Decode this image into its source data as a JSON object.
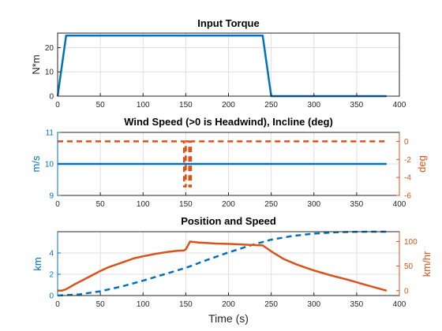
{
  "colors": {
    "blue": "#0072BD",
    "orange": "#D95319",
    "axis": "#262626",
    "grid": "#dfdfdf"
  },
  "chart_data": [
    {
      "type": "line",
      "title": "Input Torque",
      "xlabel": "",
      "ylabel": "N*m",
      "xlim": [
        0,
        400
      ],
      "ylim": [
        0,
        26
      ],
      "xticks": [
        0,
        50,
        100,
        150,
        200,
        250,
        300,
        350,
        400
      ],
      "yticks": [
        0,
        10,
        20
      ],
      "grid": true,
      "series": [
        {
          "color": "#0072BD",
          "style": "solid",
          "x": [
            0,
            10,
            240,
            250,
            385
          ],
          "y": [
            0,
            25,
            25,
            0,
            0
          ]
        }
      ]
    },
    {
      "type": "line",
      "title": "Wind Speed (>0 is Headwind), Incline (deg)",
      "xlabel": "",
      "ylabel": "m/s",
      "y2label": "deg",
      "xlim": [
        0,
        400
      ],
      "ylim": [
        9,
        11
      ],
      "y2lim": [
        -6,
        1
      ],
      "xticks": [
        0,
        50,
        100,
        150,
        200,
        250,
        300,
        350,
        400
      ],
      "yticks": [
        9,
        10,
        11
      ],
      "y2ticks": [
        0,
        -2,
        -4,
        -6
      ],
      "y2ticklabels": [
        "0",
        "-2",
        "-4",
        "-6"
      ],
      "grid": true,
      "series": [
        {
          "color": "#0072BD",
          "style": "solid",
          "axis": "left",
          "x": [
            0,
            385
          ],
          "y": [
            10,
            10
          ]
        },
        {
          "color": "#D95319",
          "style": "dashed",
          "axis": "right",
          "x": [
            0,
            148,
            148,
            150,
            150,
            154,
            154,
            156,
            156,
            385
          ],
          "y": [
            0,
            0,
            -5,
            -5,
            0,
            0,
            -5,
            -5,
            0,
            0
          ]
        }
      ]
    },
    {
      "type": "line",
      "title": "Position and Speed",
      "xlabel": "Time (s)",
      "ylabel": "km",
      "y2label": "km/hr",
      "xlim": [
        0,
        400
      ],
      "ylim": [
        0,
        6
      ],
      "y2lim": [
        -10,
        120
      ],
      "xticks": [
        0,
        50,
        100,
        150,
        200,
        250,
        300,
        350,
        400
      ],
      "yticks": [
        0,
        2,
        4
      ],
      "y2ticks": [
        0,
        50,
        100
      ],
      "grid": true,
      "series": [
        {
          "color": "#0072BD",
          "style": "dashed",
          "axis": "left",
          "x": [
            0,
            25,
            50,
            75,
            100,
            125,
            150,
            175,
            200,
            225,
            250,
            275,
            300,
            325,
            350,
            375,
            385
          ],
          "y": [
            0,
            0.1,
            0.4,
            0.85,
            1.4,
            2.0,
            2.6,
            3.35,
            4.05,
            4.7,
            5.25,
            5.6,
            5.82,
            5.94,
            5.99,
            6.0,
            6.0
          ]
        },
        {
          "color": "#D95319",
          "style": "solid",
          "axis": "right",
          "x": [
            0,
            5,
            10,
            20,
            30,
            40,
            50,
            60,
            75,
            90,
            100,
            115,
            130,
            140,
            148,
            150,
            155,
            165,
            185,
            205,
            225,
            240,
            250,
            265,
            280,
            300,
            320,
            340,
            360,
            385
          ],
          "y": [
            0,
            0,
            3,
            13,
            22,
            31,
            40,
            48,
            57,
            66,
            70,
            75,
            79,
            81,
            82,
            84,
            100,
            98,
            96,
            95,
            93,
            92,
            80,
            64,
            53,
            41,
            31,
            22,
            12,
            0
          ]
        }
      ]
    }
  ]
}
